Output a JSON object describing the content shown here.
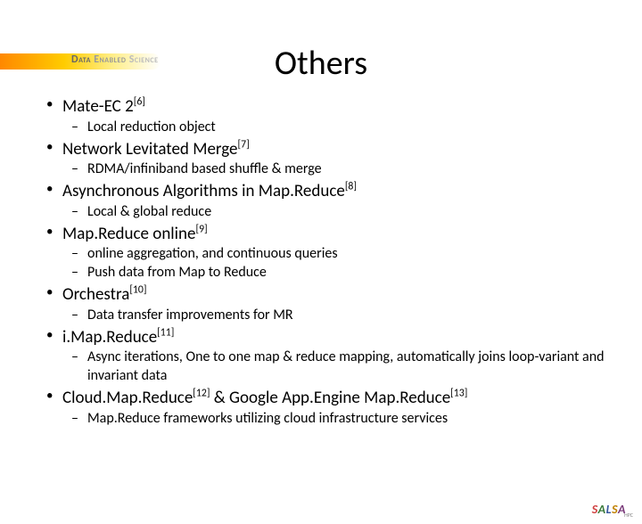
{
  "header": {
    "word1": "Data",
    "word2": "Enabled",
    "word3": "Science"
  },
  "title": "Others",
  "items": [
    {
      "label": "Mate-EC 2",
      "ref": "[6]",
      "subs": [
        "Local reduction object"
      ]
    },
    {
      "label": "Network Levitated Merge",
      "ref": "[7]",
      "subs": [
        "RDMA/infiniband based shuffle & merge"
      ]
    },
    {
      "label": "Asynchronous Algorithms in Map.Reduce",
      "ref": "[8]",
      "subs": [
        "Local & global reduce"
      ]
    },
    {
      "label": "Map.Reduce online",
      "ref": "[9]",
      "subs": [
        "online aggregation, and continuous queries",
        "Push data from Map to Reduce"
      ]
    },
    {
      "label": "Orchestra",
      "ref": "[10]",
      "subs": [
        "Data transfer improvements for MR"
      ]
    },
    {
      "label": "i.Map.Reduce",
      "ref": "[11]",
      "subs": [
        "Async iterations, One to one map & reduce mapping, automatically joins loop-variant and invariant data"
      ]
    },
    {
      "label": "Cloud.Map.Reduce",
      "ref": "[12]",
      "label2": " & Google App.Engine Map.Reduce",
      "ref2": "[13]",
      "subs": [
        "Map.Reduce frameworks utilizing cloud infrastructure services"
      ]
    }
  ],
  "footer": {
    "s": "S",
    "a": "A",
    "l": "L",
    "s2": "S",
    "a2": "A",
    "sub": "HPC"
  }
}
